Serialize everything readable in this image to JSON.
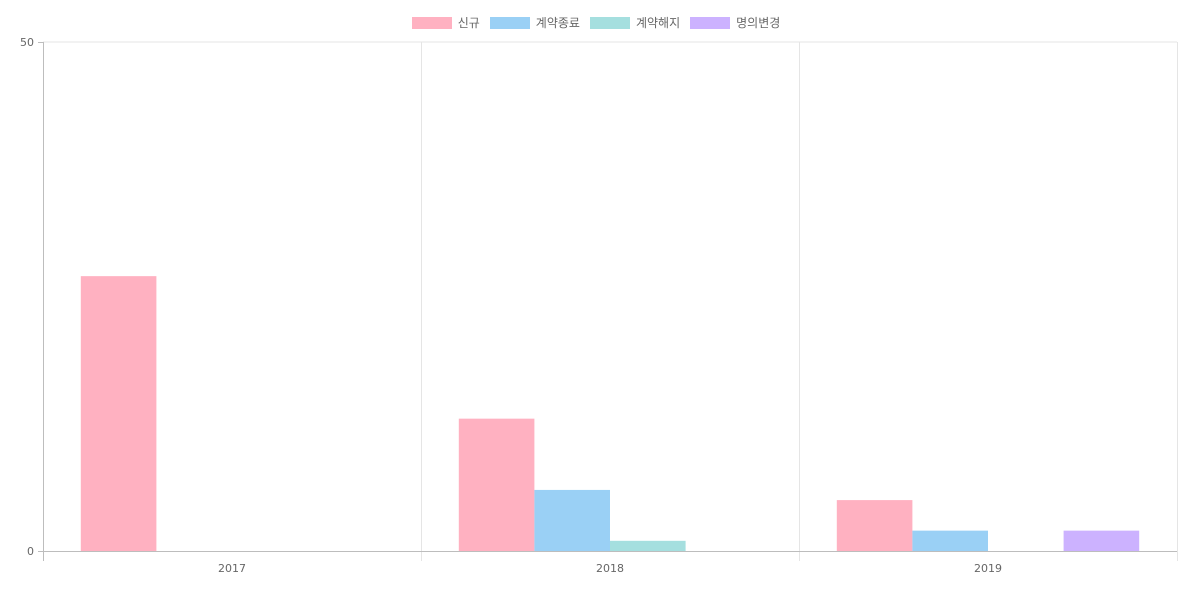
{
  "chart_data": {
    "type": "bar",
    "categories": [
      "2017",
      "2018",
      "2019"
    ],
    "series": [
      {
        "name": "신규",
        "color": "#ffb1c1",
        "values": [
          27,
          13,
          5
        ]
      },
      {
        "name": "계약종료",
        "color": "#9ad0f5",
        "values": [
          0,
          6,
          2
        ]
      },
      {
        "name": "계약해지",
        "color": "#a5dfdf",
        "values": [
          0,
          1,
          0
        ]
      },
      {
        "name": "명의변경",
        "color": "#ccb2ff",
        "values": [
          0,
          0,
          2
        ]
      }
    ],
    "ylim": [
      0,
      50
    ],
    "yticks": [
      "0",
      "50"
    ],
    "grid": true,
    "legend": "top-center"
  }
}
